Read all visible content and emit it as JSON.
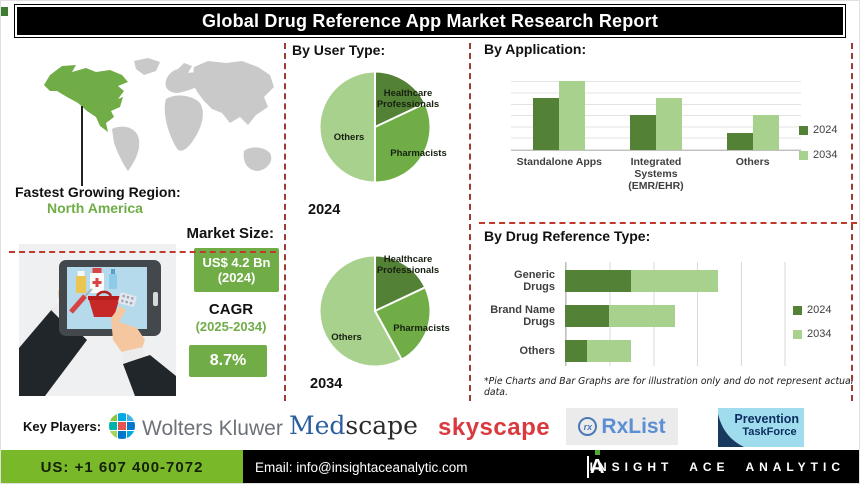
{
  "title": "Global Drug Reference App Market Research Report",
  "left": {
    "region_heading": "Fastest Growing Region:",
    "region_value": "North America",
    "market_size_heading": "Market Size:",
    "market_size_value": "US$ 4.2 Bn",
    "market_size_year": "(2024)",
    "cagr_heading": "CAGR",
    "cagr_period": "(2025-2034)",
    "cagr_value": "8.7%"
  },
  "sections": {
    "user_type_heading": "By User Type:",
    "application_heading": "By Application:",
    "drug_reference_heading": "By Drug Reference Type:",
    "disclaimer": "*Pie Charts and Bar Graphs are for illustration only and do not represent actual data."
  },
  "key_players": {
    "heading": "Key Players:",
    "wolters_kluwer": "Wolters Kluwer",
    "medscape_part1": "Med",
    "medscape_part2": "scape",
    "skyscape": "skyscape",
    "rxlist_icon": "rx",
    "rxlist": "RxList",
    "prevention_line1": "Prevention",
    "prevention_line2": "TaskForce"
  },
  "footer": {
    "phone": "US: +1 607 400-7072",
    "email": "Email: info@insightaceanalytic.com",
    "brand": "INSIGHT ACE ANALYTIC",
    "logo_letter": "A"
  },
  "colors": {
    "green_dark": "#538135",
    "green_mid": "#70ad47",
    "green_light": "#a9d18e",
    "footer_green": "#79b829",
    "divider_red": "#9e3b35",
    "map_highlight": "#70ad47",
    "map_base": "#c9c9c9",
    "title_bg": "#000000"
  },
  "chart_data": [
    {
      "id": "user_type_2024",
      "type": "pie",
      "title": "By User Type:",
      "year_label": "2024",
      "segments": [
        {
          "label": "Healthcare Professionals",
          "value": 18,
          "color": "#538135"
        },
        {
          "label": "Pharmacists",
          "value": 32,
          "color": "#70ad47"
        },
        {
          "label": "Others",
          "value": 50,
          "color": "#a9d18e"
        }
      ]
    },
    {
      "id": "user_type_2034",
      "type": "pie",
      "title": "By User Type:",
      "year_label": "2034",
      "segments": [
        {
          "label": "Healthcare Professionals",
          "value": 18,
          "color": "#538135"
        },
        {
          "label": "Pharmacists",
          "value": 24,
          "color": "#70ad47"
        },
        {
          "label": "Others",
          "value": 58,
          "color": "#a9d18e"
        }
      ]
    },
    {
      "id": "application",
      "type": "bar",
      "title": "By Application:",
      "categories": [
        "Standalone Apps",
        "Integrated Systems\n(EMR/EHR)",
        "Others"
      ],
      "series": [
        {
          "name": "2024",
          "color": "#538135",
          "values": [
            3,
            2,
            1
          ]
        },
        {
          "name": "2034",
          "color": "#a9d18e",
          "values": [
            4,
            3,
            2
          ]
        }
      ],
      "ymax": 4.5,
      "grid": true,
      "legend_position": "right"
    },
    {
      "id": "drug_reference",
      "type": "bar",
      "orientation": "horizontal",
      "stacked": true,
      "title": "By Drug Reference Type:",
      "categories": [
        "Generic Drugs",
        "Brand Name\nDrugs",
        "Others"
      ],
      "series": [
        {
          "name": "2024",
          "color": "#538135",
          "values": [
            1.5,
            1.0,
            0.5
          ]
        },
        {
          "name": "2034",
          "color": "#a9d18e",
          "values": [
            2.0,
            1.5,
            1.0
          ]
        }
      ],
      "xmax": 6,
      "grid": true,
      "legend_position": "right"
    }
  ]
}
